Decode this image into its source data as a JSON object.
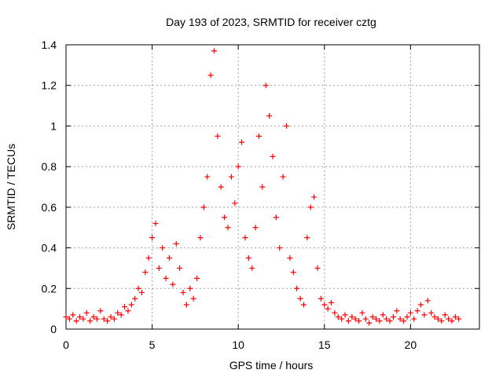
{
  "chart_data": {
    "type": "scatter",
    "title": "Day 193 of 2023, SRMTID for receiver cztg",
    "xlabel": "GPS time / hours",
    "ylabel": "SRMTID / TECUs",
    "xlim": [
      0,
      24
    ],
    "ylim": [
      0,
      1.4
    ],
    "xticks": [
      0,
      5,
      10,
      15,
      20
    ],
    "yticks": [
      0,
      0.2,
      0.4,
      0.6,
      0.8,
      1,
      1.2,
      1.4
    ],
    "xtick_labels": [
      "0",
      "5",
      "10",
      "15",
      "20"
    ],
    "ytick_labels": [
      "0",
      "0.2",
      "0.4",
      "0.6",
      "0.8",
      "1",
      "1.2",
      "1.4"
    ],
    "grid": true,
    "marker": "+",
    "series": [
      {
        "name": "cztg",
        "color": "#ff0000",
        "x": [
          0.0,
          0.2,
          0.4,
          0.6,
          0.8,
          1.0,
          1.2,
          1.4,
          1.6,
          1.8,
          2.0,
          2.2,
          2.4,
          2.6,
          2.8,
          3.0,
          3.2,
          3.4,
          3.6,
          3.8,
          4.0,
          4.2,
          4.4,
          4.6,
          4.8,
          5.0,
          5.2,
          5.4,
          5.6,
          5.8,
          6.0,
          6.2,
          6.4,
          6.6,
          6.8,
          7.0,
          7.2,
          7.4,
          7.6,
          7.8,
          8.0,
          8.2,
          8.4,
          8.6,
          8.8,
          9.0,
          9.2,
          9.4,
          9.6,
          9.8,
          10.0,
          10.2,
          10.4,
          10.6,
          10.8,
          11.0,
          11.2,
          11.4,
          11.6,
          11.8,
          12.0,
          12.2,
          12.4,
          12.6,
          12.8,
          13.0,
          13.2,
          13.4,
          13.6,
          13.8,
          14.0,
          14.2,
          14.4,
          14.6,
          14.8,
          15.0,
          15.2,
          15.4,
          15.6,
          15.8,
          16.0,
          16.2,
          16.4,
          16.6,
          16.8,
          17.0,
          17.2,
          17.4,
          17.6,
          17.8,
          18.0,
          18.2,
          18.4,
          18.6,
          18.8,
          19.0,
          19.2,
          19.4,
          19.6,
          19.8,
          20.0,
          20.2,
          20.4,
          20.6,
          20.8,
          21.0,
          21.2,
          21.4,
          21.6,
          21.8,
          22.0,
          22.2,
          22.4,
          22.6,
          22.8
        ],
        "y": [
          0.06,
          0.05,
          0.07,
          0.04,
          0.06,
          0.05,
          0.08,
          0.04,
          0.06,
          0.05,
          0.09,
          0.05,
          0.04,
          0.06,
          0.05,
          0.08,
          0.07,
          0.11,
          0.09,
          0.12,
          0.15,
          0.2,
          0.18,
          0.28,
          0.35,
          0.45,
          0.52,
          0.3,
          0.4,
          0.25,
          0.35,
          0.22,
          0.42,
          0.3,
          0.18,
          0.12,
          0.2,
          0.15,
          0.25,
          0.45,
          0.6,
          0.75,
          1.25,
          1.37,
          0.95,
          0.7,
          0.55,
          0.5,
          0.75,
          0.62,
          0.8,
          0.92,
          0.45,
          0.35,
          0.3,
          0.5,
          0.95,
          0.7,
          1.2,
          1.05,
          0.85,
          0.55,
          0.4,
          0.75,
          1.0,
          0.35,
          0.28,
          0.2,
          0.15,
          0.12,
          0.45,
          0.6,
          0.65,
          0.3,
          0.15,
          0.12,
          0.1,
          0.13,
          0.08,
          0.06,
          0.05,
          0.07,
          0.04,
          0.06,
          0.05,
          0.04,
          0.08,
          0.05,
          0.03,
          0.06,
          0.05,
          0.04,
          0.07,
          0.05,
          0.04,
          0.06,
          0.09,
          0.05,
          0.04,
          0.06,
          0.08,
          0.05,
          0.09,
          0.12,
          0.07,
          0.14,
          0.08,
          0.06,
          0.05,
          0.04,
          0.07,
          0.05,
          0.04,
          0.06,
          0.05
        ]
      }
    ]
  }
}
